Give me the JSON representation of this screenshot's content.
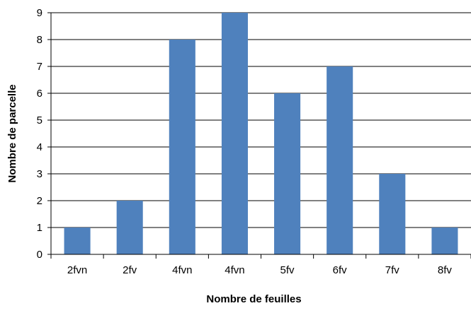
{
  "chart_data": {
    "type": "bar",
    "title": "",
    "xlabel": "Nombre de feuilles",
    "ylabel": "Nombre de parcelle",
    "categories": [
      "2fvn",
      "2fv",
      "4fvn",
      "4fvn",
      "5fv",
      "6fv",
      "7fv",
      "8fv"
    ],
    "values": [
      1,
      2,
      8,
      9,
      6,
      7,
      3,
      1
    ],
    "ylim": [
      0,
      9
    ],
    "yticks": [
      0,
      1,
      2,
      3,
      4,
      5,
      6,
      7,
      8,
      9
    ],
    "grid": true,
    "legend": "none",
    "colors": {
      "bar": "#4f81bd",
      "grid": "#000000",
      "axis": "#000000"
    }
  }
}
